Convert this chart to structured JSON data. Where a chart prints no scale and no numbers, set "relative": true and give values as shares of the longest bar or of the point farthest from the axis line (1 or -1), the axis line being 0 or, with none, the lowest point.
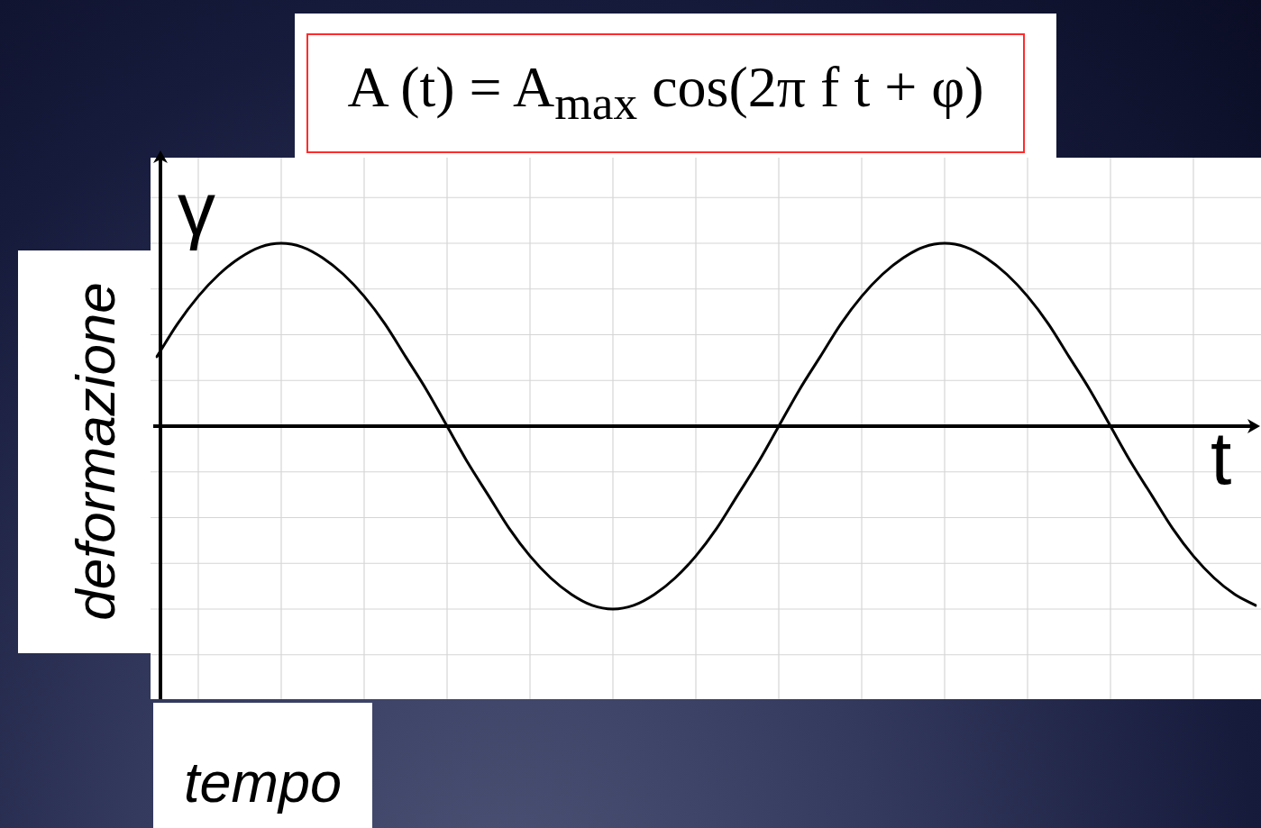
{
  "chart_data": {
    "type": "line",
    "title": "A (t) = A$_{max}$ cos(2π f t + φ)",
    "xlabel": "tempo",
    "ylabel": "deformazione",
    "annotations": [
      "γ",
      "t"
    ],
    "categories": [
      null,
      null,
      null,
      null,
      null,
      null,
      null,
      null,
      null,
      null,
      null,
      null,
      null,
      null,
      null,
      null,
      null,
      null,
      null,
      null,
      null,
      null,
      null,
      null,
      null,
      null,
      null,
      null,
      null,
      null,
      null,
      null,
      null,
      null,
      null,
      null,
      null,
      null,
      null,
      null,
      null,
      null,
      null,
      null,
      null,
      null,
      null,
      null,
      null,
      null,
      null,
      null,
      null,
      null
    ],
    "values": [
      0.38,
      0.56,
      0.71,
      0.83,
      0.92,
      0.98,
      1,
      0.98,
      0.92,
      0.83,
      0.71,
      0.56,
      0.38,
      0.2,
      0,
      -0.2,
      -0.38,
      -0.56,
      -0.71,
      -0.83,
      -0.92,
      -0.98,
      -1,
      -0.98,
      -0.92,
      -0.83,
      -0.71,
      -0.56,
      -0.38,
      -0.2,
      0,
      0.2,
      0.38,
      0.56,
      0.71,
      0.83,
      0.92,
      0.98,
      1,
      0.98,
      0.92,
      0.83,
      0.71,
      0.56,
      0.38,
      0.2,
      0,
      -0.2,
      -0.38,
      -0.56,
      -0.71,
      -0.83,
      -0.92,
      -0.98
    ],
    "color": "#000000",
    "relative": true,
    "grid": true,
    "marker": "none",
    "line_style": "solid"
  }
}
